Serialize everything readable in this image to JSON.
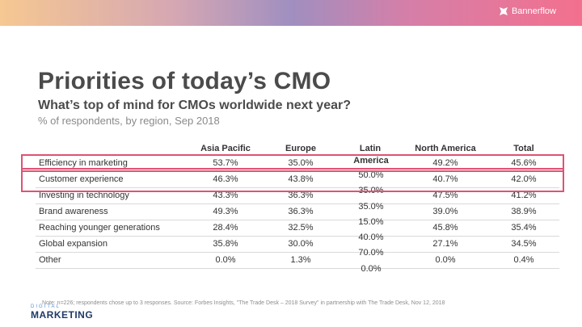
{
  "brand": {
    "name": "Bannerflow",
    "icon": "bannerflow-icon"
  },
  "title": "Priorities of today’s CMO",
  "subtitle": "What’s top of mind for CMOs worldwide next year?",
  "subtitle2": "% of respondents, by region, Sep 2018",
  "table": {
    "headers": [
      "",
      "Asia Pacific",
      "Europe",
      "Latin",
      "North America",
      "Total"
    ],
    "latin_header_second_line": "America",
    "rows": [
      {
        "label": "Efficiency in marketing",
        "asia": "53.7%",
        "europe": "35.0%",
        "north": "49.2%",
        "total": "45.6%"
      },
      {
        "label": "Customer experience",
        "asia": "46.3%",
        "europe": "43.8%",
        "north": "40.7%",
        "total": "42.0%"
      },
      {
        "label": "Investing in technology",
        "asia": "43.3%",
        "europe": "36.3%",
        "north": "47.5%",
        "total": "41.2%"
      },
      {
        "label": "Brand awareness",
        "asia": "49.3%",
        "europe": "36.3%",
        "north": "39.0%",
        "total": "38.9%"
      },
      {
        "label": "Reaching younger generations",
        "asia": "28.4%",
        "europe": "32.5%",
        "north": "45.8%",
        "total": "35.4%"
      },
      {
        "label": "Global expansion",
        "asia": "35.8%",
        "europe": "30.0%",
        "north": "27.1%",
        "total": "34.5%"
      },
      {
        "label": "Other",
        "asia": "0.0%",
        "europe": "1.3%",
        "north": "0.0%",
        "total": "0.4%"
      }
    ],
    "latin_values": [
      "50.0%",
      "35.0%",
      "35.0%",
      "15.0%",
      "40.0%",
      "70.0%",
      "0.0%"
    ]
  },
  "note": "Note: n=226; respondents chose up to 3 responses. Source: Forbes Insights, \"The Trade Desk – 2018 Survey\" in partnership with The Trade Desk, Nov 12, 2018",
  "logo": {
    "top": "DIGITAL",
    "main": "MARKETING"
  },
  "colors": {
    "highlight": "#e05274",
    "title": "#4b4b4b",
    "logo_blue": "#1f3a68"
  }
}
